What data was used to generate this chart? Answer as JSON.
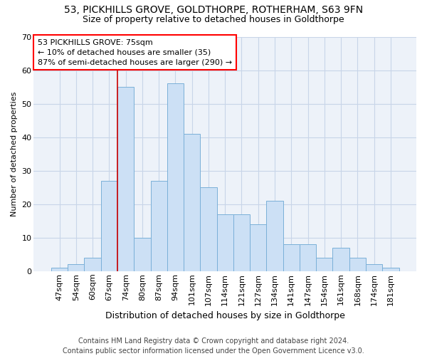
{
  "title1": "53, PICKHILLS GROVE, GOLDTHORPE, ROTHERHAM, S63 9FN",
  "title2": "Size of property relative to detached houses in Goldthorpe",
  "xlabel": "Distribution of detached houses by size in Goldthorpe",
  "ylabel": "Number of detached properties",
  "categories": [
    "47sqm",
    "54sqm",
    "60sqm",
    "67sqm",
    "74sqm",
    "80sqm",
    "87sqm",
    "94sqm",
    "101sqm",
    "107sqm",
    "114sqm",
    "121sqm",
    "127sqm",
    "134sqm",
    "141sqm",
    "147sqm",
    "154sqm",
    "161sqm",
    "168sqm",
    "174sqm",
    "181sqm"
  ],
  "values": [
    1,
    2,
    4,
    27,
    55,
    10,
    27,
    56,
    41,
    25,
    17,
    17,
    14,
    21,
    8,
    8,
    4,
    7,
    4,
    2,
    1
  ],
  "bar_color": "#cce0f5",
  "bar_edge_color": "#7ab0d8",
  "annotation_line1": "53 PICKHILLS GROVE: 75sqm",
  "annotation_line2": "← 10% of detached houses are smaller (35)",
  "annotation_line3": "87% of semi-detached houses are larger (290) →",
  "vline_color": "#cc0000",
  "vline_bin_index": 4,
  "footer": "Contains HM Land Registry data © Crown copyright and database right 2024.\nContains public sector information licensed under the Open Government Licence v3.0.",
  "ylim": [
    0,
    70
  ],
  "yticks": [
    0,
    10,
    20,
    30,
    40,
    50,
    60,
    70
  ],
  "grid_color": "#c8d5e8",
  "bg_color": "#edf2f9",
  "title1_fontsize": 10,
  "title2_fontsize": 9,
  "xlabel_fontsize": 9,
  "ylabel_fontsize": 8,
  "tick_fontsize": 8,
  "footer_fontsize": 7
}
